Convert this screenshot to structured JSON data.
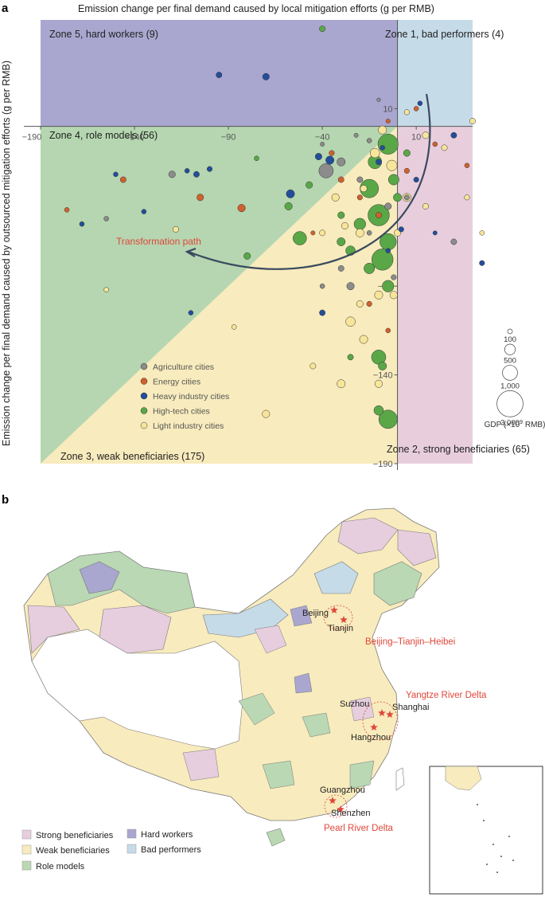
{
  "panel_a": {
    "label": "a"
  },
  "panel_b": {
    "label": "b"
  },
  "chart_data": {
    "type": "scatter",
    "title": "",
    "xlabel": "Emission change per final demand caused by local mitigation efforts (g per RMB)",
    "ylabel": "Emission change per final demand caused by outsourced mitigation efforts (g per RMB)",
    "xlim": [
      -190,
      40
    ],
    "ylim": [
      -190,
      60
    ],
    "x_ticks": [
      -190,
      -140,
      -90,
      -40,
      10
    ],
    "x_tick_labels": [
      "−190",
      "−140",
      "−90",
      "−40",
      "10"
    ],
    "y_ticks": [
      10,
      -90,
      -140,
      -190
    ],
    "y_tick_labels": [
      "10",
      "−90",
      "−140",
      "−190"
    ],
    "zones": [
      {
        "id": "zone5",
        "label": "Zone 5, hard workers (9)",
        "color": "#a9a6cf"
      },
      {
        "id": "zone1",
        "label": "Zone 1, bad performers (4)",
        "color": "#c6dbe8"
      },
      {
        "id": "zone4",
        "label": "Zone 4, role models (56)",
        "color": "#b5d6b0"
      },
      {
        "id": "zone3",
        "label": "Zone 3, weak beneficiaries (175)",
        "color": "#f8ebbd"
      },
      {
        "id": "zone2",
        "label": "Zone 2, strong beneficiaries (65)",
        "color": "#e8cedd"
      }
    ],
    "annotation": {
      "text": "Transformation path",
      "color": "#e0473a"
    },
    "categories": [
      {
        "name": "Agriculture cities",
        "color": "#8c8c8c"
      },
      {
        "name": "Energy cities",
        "color": "#d0612d"
      },
      {
        "name": "Heavy industry cities",
        "color": "#234e9a"
      },
      {
        "name": "High-tech cities",
        "color": "#5aa748"
      },
      {
        "name": "Light industry cities",
        "color": "#f7e59a"
      }
    ],
    "size_legend": {
      "values": [
        100,
        500,
        1000,
        3000
      ],
      "labels": [
        "100",
        "500",
        "1,000",
        "3,000"
      ],
      "title_prefix": "GDP (×10",
      "title_exp": "9",
      "title_suffix": " RMB)"
    },
    "series": [
      {
        "name": "Agriculture cities",
        "points": [
          {
            "x": -10,
            "y": 15,
            "gdp": 60
          },
          {
            "x": -40,
            "y": -10,
            "gdp": 80
          },
          {
            "x": -38,
            "y": -25,
            "gdp": 900
          },
          {
            "x": -30,
            "y": -20,
            "gdp": 300
          },
          {
            "x": -20,
            "y": -30,
            "gdp": 150
          },
          {
            "x": -120,
            "y": -27,
            "gdp": 200
          },
          {
            "x": -155,
            "y": -52,
            "gdp": 100
          },
          {
            "x": -30,
            "y": -80,
            "gdp": 150
          },
          {
            "x": -25,
            "y": -90,
            "gdp": 250
          },
          {
            "x": 30,
            "y": -65,
            "gdp": 150
          },
          {
            "x": -15,
            "y": -60,
            "gdp": 100
          },
          {
            "x": -5,
            "y": -45,
            "gdp": 200
          },
          {
            "x": -2,
            "y": -85,
            "gdp": 120
          },
          {
            "x": -15,
            "y": -8,
            "gdp": 100
          },
          {
            "x": 5,
            "y": -40,
            "gdp": 120
          },
          {
            "x": -40,
            "y": -90,
            "gdp": 100
          },
          {
            "x": -22,
            "y": -5,
            "gdp": 80
          }
        ]
      },
      {
        "name": "Energy cities",
        "points": [
          {
            "x": 10,
            "y": 10,
            "gdp": 100
          },
          {
            "x": -146,
            "y": -30,
            "gdp": 150
          },
          {
            "x": -105,
            "y": -40,
            "gdp": 200
          },
          {
            "x": -83,
            "y": -46,
            "gdp": 250
          },
          {
            "x": -176,
            "y": -47,
            "gdp": 100
          },
          {
            "x": -35,
            "y": -15,
            "gdp": 120
          },
          {
            "x": -30,
            "y": -30,
            "gdp": 150
          },
          {
            "x": 5,
            "y": -25,
            "gdp": 120
          },
          {
            "x": 20,
            "y": -10,
            "gdp": 100
          },
          {
            "x": 37,
            "y": -22,
            "gdp": 100
          },
          {
            "x": -20,
            "y": -40,
            "gdp": 120
          },
          {
            "x": -10,
            "y": -50,
            "gdp": 150
          },
          {
            "x": -45,
            "y": -60,
            "gdp": 80
          },
          {
            "x": -15,
            "y": -100,
            "gdp": 120
          },
          {
            "x": -5,
            "y": -115,
            "gdp": 100
          },
          {
            "x": -5,
            "y": 3,
            "gdp": 80
          }
        ]
      },
      {
        "name": "Heavy industry cities",
        "points": [
          {
            "x": -70,
            "y": 28,
            "gdp": 200
          },
          {
            "x": -95,
            "y": 29,
            "gdp": 150
          },
          {
            "x": -36,
            "y": -19,
            "gdp": 300
          },
          {
            "x": -42,
            "y": -17,
            "gdp": 200
          },
          {
            "x": -57,
            "y": -38,
            "gdp": 300
          },
          {
            "x": -100,
            "y": -24,
            "gdp": 120
          },
          {
            "x": -107,
            "y": -27,
            "gdp": 150
          },
          {
            "x": -112,
            "y": -25,
            "gdp": 100
          },
          {
            "x": -150,
            "y": -27,
            "gdp": 100
          },
          {
            "x": -168,
            "y": -55,
            "gdp": 100
          },
          {
            "x": -135,
            "y": -48,
            "gdp": 100
          },
          {
            "x": -110,
            "y": -105,
            "gdp": 100
          },
          {
            "x": -40,
            "y": -105,
            "gdp": 150
          },
          {
            "x": 45,
            "y": -77,
            "gdp": 120
          },
          {
            "x": 30,
            "y": -5,
            "gdp": 150
          },
          {
            "x": -10,
            "y": -20,
            "gdp": 150
          },
          {
            "x": 10,
            "y": -30,
            "gdp": 120
          },
          {
            "x": 2,
            "y": -58,
            "gdp": 120
          },
          {
            "x": -8,
            "y": -12,
            "gdp": 100
          },
          {
            "x": 12,
            "y": 13,
            "gdp": 100
          },
          {
            "x": -5,
            "y": -70,
            "gdp": 100
          },
          {
            "x": 20,
            "y": -60,
            "gdp": 80
          }
        ]
      },
      {
        "name": "High-tech cities",
        "points": [
          {
            "x": -40,
            "y": 55,
            "gdp": 150
          },
          {
            "x": -52,
            "y": -63,
            "gdp": 800
          },
          {
            "x": -80,
            "y": -73,
            "gdp": 200
          },
          {
            "x": -58,
            "y": -45,
            "gdp": 250
          },
          {
            "x": -47,
            "y": -33,
            "gdp": 200
          },
          {
            "x": -30,
            "y": -50,
            "gdp": 200
          },
          {
            "x": -5,
            "y": -10,
            "gdp": 1800
          },
          {
            "x": -12,
            "y": -20,
            "gdp": 800
          },
          {
            "x": -15,
            "y": -35,
            "gdp": 1500
          },
          {
            "x": -10,
            "y": -50,
            "gdp": 2000
          },
          {
            "x": -5,
            "y": -65,
            "gdp": 1200
          },
          {
            "x": -8,
            "y": -75,
            "gdp": 2000
          },
          {
            "x": -5,
            "y": -90,
            "gdp": 600
          },
          {
            "x": -15,
            "y": -80,
            "gdp": 500
          },
          {
            "x": -25,
            "y": -70,
            "gdp": 400
          },
          {
            "x": -20,
            "y": -55,
            "gdp": 600
          },
          {
            "x": -30,
            "y": -65,
            "gdp": 300
          },
          {
            "x": -10,
            "y": -130,
            "gdp": 900
          },
          {
            "x": -8,
            "y": -135,
            "gdp": 300
          },
          {
            "x": -5,
            "y": -165,
            "gdp": 1500
          },
          {
            "x": -10,
            "y": -160,
            "gdp": 400
          },
          {
            "x": -25,
            "y": -130,
            "gdp": 150
          },
          {
            "x": 0,
            "y": -40,
            "gdp": 300
          },
          {
            "x": 5,
            "y": -15,
            "gdp": 200
          },
          {
            "x": -2,
            "y": -30,
            "gdp": 500
          },
          {
            "x": -75,
            "y": -18,
            "gdp": 100
          }
        ]
      },
      {
        "name": "Light industry cities",
        "points": [
          {
            "x": -118,
            "y": -58,
            "gdp": 150
          },
          {
            "x": -155,
            "y": -92,
            "gdp": 100
          },
          {
            "x": -87,
            "y": -113,
            "gdp": 100
          },
          {
            "x": -33,
            "y": -40,
            "gdp": 250
          },
          {
            "x": -28,
            "y": -56,
            "gdp": 200
          },
          {
            "x": -20,
            "y": -60,
            "gdp": 300
          },
          {
            "x": -40,
            "y": -60,
            "gdp": 150
          },
          {
            "x": -8,
            "y": -2,
            "gdp": 300
          },
          {
            "x": -12,
            "y": -15,
            "gdp": 400
          },
          {
            "x": -3,
            "y": -22,
            "gdp": 500
          },
          {
            "x": 5,
            "y": -40,
            "gdp": 300
          },
          {
            "x": 15,
            "y": -5,
            "gdp": 200
          },
          {
            "x": 25,
            "y": -12,
            "gdp": 150
          },
          {
            "x": 40,
            "y": 3,
            "gdp": 150
          },
          {
            "x": 37,
            "y": -40,
            "gdp": 120
          },
          {
            "x": 45,
            "y": -60,
            "gdp": 100
          },
          {
            "x": 15,
            "y": -45,
            "gdp": 150
          },
          {
            "x": 0,
            "y": -60,
            "gdp": 200
          },
          {
            "x": -10,
            "y": -95,
            "gdp": 300
          },
          {
            "x": -20,
            "y": -100,
            "gdp": 200
          },
          {
            "x": -18,
            "y": -120,
            "gdp": 300
          },
          {
            "x": -25,
            "y": -110,
            "gdp": 400
          },
          {
            "x": -10,
            "y": -145,
            "gdp": 250
          },
          {
            "x": -30,
            "y": -145,
            "gdp": 300
          },
          {
            "x": -45,
            "y": -135,
            "gdp": 150
          },
          {
            "x": -70,
            "y": -162,
            "gdp": 250
          },
          {
            "x": -2,
            "y": -95,
            "gdp": 250
          },
          {
            "x": 5,
            "y": 8,
            "gdp": 120
          },
          {
            "x": -18,
            "y": -35,
            "gdp": 200
          }
        ]
      }
    ]
  },
  "map": {
    "cities": [
      {
        "name": "Beijing"
      },
      {
        "name": "Tianjin"
      },
      {
        "name": "Suzhou"
      },
      {
        "name": "Shanghai"
      },
      {
        "name": "Hangzhou"
      },
      {
        "name": "Guangzhou"
      },
      {
        "name": "Shenzhen"
      }
    ],
    "regions": [
      {
        "name": "Beijing–Tianjin–Heibei"
      },
      {
        "name": "Yangtze River Delta"
      },
      {
        "name": "Pearl River Delta"
      }
    ],
    "region_color": "#e0473a",
    "legend": [
      {
        "label": "Strong beneficiaries",
        "color": "#e6cede"
      },
      {
        "label": "Weak beneficiaries",
        "color": "#f8ebbd"
      },
      {
        "label": "Role models",
        "color": "#b9d8b3"
      },
      {
        "label": "Hard workers",
        "color": "#a9a6cf"
      },
      {
        "label": "Bad performers",
        "color": "#c6dbe8"
      }
    ]
  }
}
